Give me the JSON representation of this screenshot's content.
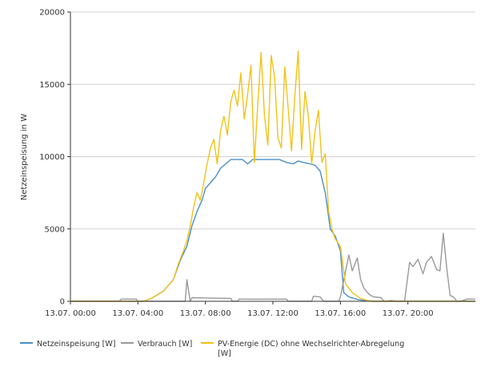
{
  "chart_data": {
    "type": "line",
    "ylabel": "Netzeinspeisung  in W",
    "ylim": [
      0,
      20000
    ],
    "y_ticks": [
      "0",
      "5000",
      "10000",
      "15000",
      "20000"
    ],
    "x_range_hours": [
      0,
      24
    ],
    "x_tick_hours": [
      0,
      4,
      8,
      12,
      16,
      20
    ],
    "x_ticks": [
      "13.07. 00:00",
      "13.07. 04:00",
      "13.07. 08:00",
      "13.07. 12:00",
      "13.07. 16:00",
      "13.07. 20:00"
    ],
    "grid": "horizontal",
    "legend_position": "bottom",
    "series": [
      {
        "name": "Netzeinspeisung  [W]",
        "color": "#4a8fc8",
        "x_hours": [
          0,
          4.3,
          4.8,
          5.5,
          6.1,
          6.5,
          6.9,
          7.2,
          7.5,
          7.8,
          8.0,
          8.3,
          8.6,
          8.9,
          9.2,
          9.5,
          9.8,
          10.2,
          10.5,
          10.8,
          11.2,
          11.6,
          12.0,
          12.4,
          12.8,
          13.2,
          13.5,
          13.8,
          14.2,
          14.5,
          14.8,
          15.1,
          15.4,
          15.7,
          16.0,
          16.2,
          16.5,
          16.8,
          17.1,
          17.5,
          18.0,
          24
        ],
        "values": [
          0,
          0,
          200,
          700,
          1500,
          2800,
          3800,
          5200,
          6200,
          7000,
          7800,
          8200,
          8600,
          9200,
          9500,
          9800,
          9800,
          9800,
          9500,
          9800,
          9800,
          9800,
          9800,
          9800,
          9600,
          9500,
          9700,
          9600,
          9500,
          9400,
          9000,
          7500,
          5000,
          4500,
          3500,
          600,
          300,
          200,
          100,
          50,
          0,
          0
        ]
      },
      {
        "name": "Verbrauch  [W]",
        "color": "#9a9a9a",
        "x_hours": [
          0,
          2.9,
          3.0,
          3.9,
          4.0,
          6.8,
          6.9,
          7.1,
          7.2,
          9.5,
          9.6,
          9.9,
          10.0,
          12.8,
          12.9,
          14.3,
          14.4,
          14.8,
          15.0,
          15.9,
          16.0,
          16.5,
          16.7,
          17.0,
          17.2,
          17.4,
          17.6,
          17.8,
          18.0,
          18.4,
          18.6,
          19.0,
          19.4,
          19.6,
          19.8,
          20.1,
          20.3,
          20.6,
          20.9,
          21.1,
          21.4,
          21.7,
          21.9,
          22.1,
          22.3,
          22.5,
          22.7,
          22.9,
          23.1,
          23.5,
          24
        ],
        "values": [
          0,
          0,
          150,
          150,
          0,
          0,
          1500,
          0,
          250,
          200,
          0,
          0,
          150,
          150,
          0,
          0,
          350,
          300,
          0,
          0,
          300,
          3200,
          2100,
          3000,
          1500,
          900,
          600,
          400,
          300,
          250,
          0,
          50,
          0,
          0,
          0,
          2700,
          2400,
          2900,
          1900,
          2700,
          3100,
          2200,
          2100,
          4700,
          2300,
          400,
          300,
          0,
          0,
          150,
          150
        ]
      },
      {
        "name": "PV-Energie (DC) ohne Wechselrichter-Abregelung [W]",
        "color": "#f2c21a",
        "x_hours": [
          0,
          4.3,
          4.8,
          5.5,
          6.1,
          6.4,
          6.7,
          6.9,
          7.1,
          7.3,
          7.5,
          7.7,
          7.9,
          8.1,
          8.3,
          8.5,
          8.7,
          8.9,
          9.1,
          9.3,
          9.5,
          9.7,
          9.9,
          10.1,
          10.3,
          10.5,
          10.7,
          10.9,
          11.1,
          11.3,
          11.5,
          11.7,
          11.9,
          12.1,
          12.3,
          12.5,
          12.7,
          12.9,
          13.1,
          13.3,
          13.5,
          13.7,
          13.9,
          14.1,
          14.3,
          14.5,
          14.7,
          14.9,
          15.1,
          15.3,
          15.5,
          15.7,
          16.0,
          16.3,
          16.7,
          17.2,
          17.8,
          24
        ],
        "values": [
          0,
          0,
          200,
          700,
          1500,
          2600,
          3500,
          4200,
          5200,
          6500,
          7500,
          7000,
          8200,
          9500,
          10600,
          11200,
          9500,
          11800,
          12800,
          11500,
          13800,
          14600,
          13500,
          15800,
          12600,
          14300,
          16300,
          9600,
          13500,
          17200,
          12800,
          10800,
          17000,
          15500,
          11300,
          10600,
          16200,
          13400,
          10400,
          14200,
          17300,
          10500,
          14500,
          12800,
          9500,
          11800,
          13200,
          9600,
          10200,
          6200,
          5000,
          4300,
          3800,
          1200,
          600,
          200,
          0,
          0
        ]
      }
    ]
  }
}
